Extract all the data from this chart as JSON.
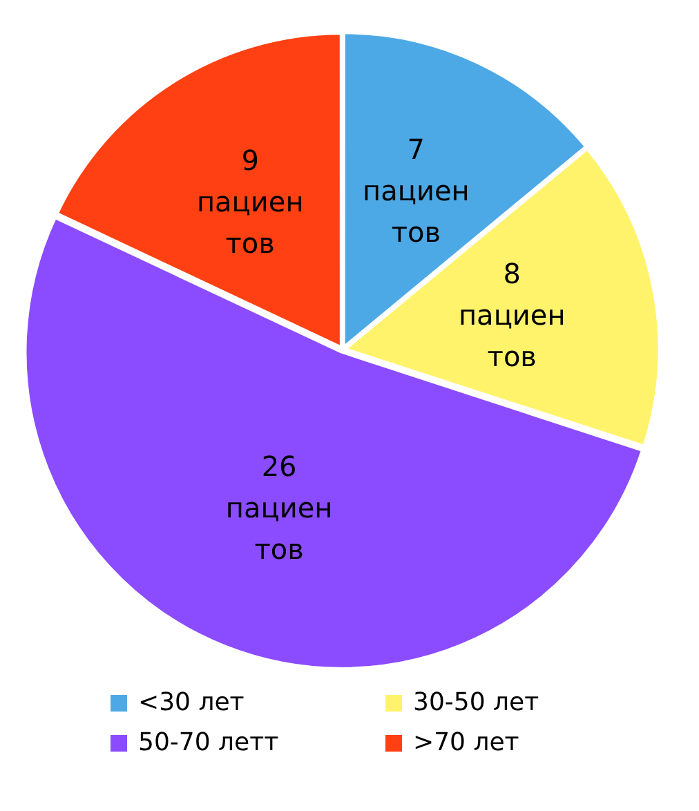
{
  "chart_data": {
    "type": "pie",
    "categories": [
      "<30 лет",
      "30-50 лет",
      "50-70 летт",
      ">70 лет"
    ],
    "values": [
      7,
      8,
      26,
      9
    ],
    "colors": [
      "#4da9e6",
      "#fff36b",
      "#8b4cff",
      "#ff4013"
    ],
    "value_labels": [
      "7 пациен тов",
      "8 пациен тов",
      "26 пациен тов",
      "9 пациен тов"
    ],
    "legend": "bottom"
  }
}
